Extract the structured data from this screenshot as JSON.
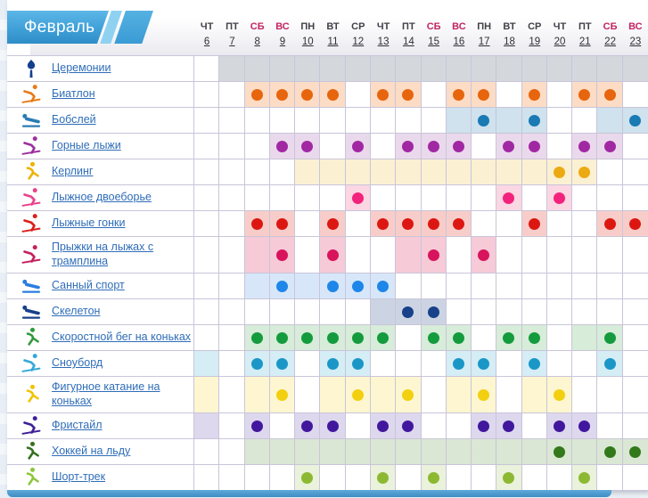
{
  "header": {
    "month_label": "Февраль",
    "days": [
      {
        "name": "ЧТ",
        "num": "6",
        "weekend": false
      },
      {
        "name": "ПТ",
        "num": "7",
        "weekend": false
      },
      {
        "name": "СБ",
        "num": "8",
        "weekend": true
      },
      {
        "name": "ВС",
        "num": "9",
        "weekend": true
      },
      {
        "name": "ПН",
        "num": "10",
        "weekend": false
      },
      {
        "name": "ВТ",
        "num": "11",
        "weekend": false
      },
      {
        "name": "СР",
        "num": "12",
        "weekend": false
      },
      {
        "name": "ЧТ",
        "num": "13",
        "weekend": false
      },
      {
        "name": "ПТ",
        "num": "14",
        "weekend": false
      },
      {
        "name": "СБ",
        "num": "15",
        "weekend": true
      },
      {
        "name": "ВС",
        "num": "16",
        "weekend": true
      },
      {
        "name": "ПН",
        "num": "17",
        "weekend": false
      },
      {
        "name": "ВТ",
        "num": "18",
        "weekend": false
      },
      {
        "name": "СР",
        "num": "19",
        "weekend": false
      },
      {
        "name": "ЧТ",
        "num": "20",
        "weekend": false
      },
      {
        "name": "ПТ",
        "num": "21",
        "weekend": false
      },
      {
        "name": "СБ",
        "num": "22",
        "weekend": true
      },
      {
        "name": "ВС",
        "num": "23",
        "weekend": true
      }
    ]
  },
  "colors": {
    "ribbon_blue": "#3fa0d8",
    "weekday_text": "#41414b",
    "weekend_text": "#c22563",
    "day_number_text": "#2e2e36",
    "sport_link": "#2f6db8",
    "grid_line": "#c9c5d9",
    "bottom_bar": "#4f9cd0"
  },
  "rows": [
    {
      "label": "Церемонии",
      "icon": "torch",
      "icon_color": "#143f8e",
      "shade_color": "#d4d8dd",
      "dot_color": null,
      "tall": false,
      "shaded": [
        7,
        8,
        9,
        10,
        11,
        12,
        13,
        14,
        15,
        16,
        17,
        18,
        19,
        20,
        21,
        22,
        23
      ],
      "dots": []
    },
    {
      "label": "Биатлон",
      "icon": "skier",
      "icon_color": "#e87a16",
      "shade_color": "#fcdcc5",
      "dot_color": "#e7650d",
      "tall": false,
      "shaded": [
        8,
        9,
        10,
        11,
        13,
        14,
        16,
        17,
        19,
        21,
        22
      ],
      "dots": [
        8,
        9,
        10,
        11,
        13,
        14,
        16,
        17,
        19,
        21,
        22
      ]
    },
    {
      "label": "Бобслей",
      "icon": "sled",
      "icon_color": "#2a7cb4",
      "shade_color": "#cfe2ee",
      "dot_color": "#1a7ab3",
      "tall": false,
      "shaded": [
        16,
        17,
        18,
        19,
        22,
        23
      ],
      "dots": [
        17,
        19,
        23
      ]
    },
    {
      "label": "Горные лыжи",
      "icon": "skier",
      "icon_color": "#9c2f9e",
      "shade_color": "#ead9ec",
      "dot_color": "#a128a3",
      "tall": false,
      "shaded": [
        9,
        10,
        12,
        14,
        15,
        16,
        18,
        19,
        21,
        22
      ],
      "dots": [
        9,
        10,
        12,
        14,
        15,
        16,
        18,
        19,
        21,
        22
      ]
    },
    {
      "label": "Керлинг",
      "icon": "skater",
      "icon_color": "#ecb200",
      "shade_color": "#fbf0d2",
      "dot_color": "#ecaa12",
      "tall": false,
      "shaded": [
        10,
        11,
        12,
        13,
        14,
        15,
        16,
        17,
        18,
        19,
        20,
        21
      ],
      "dots": [
        20,
        21
      ]
    },
    {
      "label": "Лыжное двоеборье",
      "icon": "skier",
      "icon_color": "#e8418c",
      "shade_color": "#fbd6e3",
      "dot_color": "#f2237d",
      "tall": false,
      "shaded": [
        12,
        18,
        20
      ],
      "dots": [
        12,
        18,
        20
      ]
    },
    {
      "label": "Лыжные гонки",
      "icon": "skier",
      "icon_color": "#d8201c",
      "shade_color": "#f8cdc9",
      "dot_color": "#dc1712",
      "tall": false,
      "shaded": [
        8,
        9,
        11,
        13,
        14,
        15,
        16,
        19,
        22,
        23
      ],
      "dots": [
        8,
        9,
        11,
        13,
        14,
        15,
        16,
        19,
        22,
        23
      ]
    },
    {
      "label": "Прыжки на лыжах с трамплина",
      "icon": "skier",
      "icon_color": "#c41f5e",
      "shade_color": "#f6cad7",
      "dot_color": "#d8145d",
      "tall": true,
      "shaded": [
        8,
        9,
        11,
        14,
        15,
        17
      ],
      "dots": [
        9,
        11,
        15,
        17
      ]
    },
    {
      "label": "Санный спорт",
      "icon": "sled",
      "icon_color": "#2b7de0",
      "shade_color": "#d7e7f9",
      "dot_color": "#1f86e9",
      "tall": false,
      "shaded": [
        8,
        9,
        10,
        11,
        12,
        13
      ],
      "dots": [
        9,
        11,
        12,
        13
      ]
    },
    {
      "label": "Скелетон",
      "icon": "sled",
      "icon_color": "#17418a",
      "shade_color": "#ccd4e3",
      "dot_color": "#18418a",
      "tall": false,
      "shaded": [
        13,
        14,
        15
      ],
      "dots": [
        14,
        15
      ]
    },
    {
      "label": "Скоростной бег на коньках",
      "icon": "skater",
      "icon_color": "#2f9a3a",
      "shade_color": "#d7ecd9",
      "dot_color": "#149b3e",
      "tall": false,
      "shaded": [
        8,
        9,
        10,
        11,
        12,
        13,
        15,
        16,
        18,
        19,
        21,
        22
      ],
      "dots": [
        8,
        9,
        10,
        11,
        12,
        13,
        15,
        16,
        18,
        19,
        22
      ]
    },
    {
      "label": "Сноуборд",
      "icon": "skier",
      "icon_color": "#35a8d8",
      "shade_color": "#d5edf5",
      "dot_color": "#1a97c7",
      "tall": false,
      "shaded": [
        6,
        8,
        9,
        11,
        12,
        16,
        17,
        19,
        22
      ],
      "dots": [
        8,
        9,
        11,
        12,
        16,
        17,
        19,
        22
      ]
    },
    {
      "label": "Фигурное катание на коньках",
      "icon": "skater",
      "icon_color": "#efc400",
      "shade_color": "#fdf6d1",
      "dot_color": "#f2d00f",
      "tall": true,
      "shaded": [
        6,
        8,
        9,
        11,
        12,
        13,
        14,
        16,
        17,
        19,
        20
      ],
      "dots": [
        9,
        12,
        14,
        17,
        20
      ]
    },
    {
      "label": "Фристайл",
      "icon": "skier",
      "icon_color": "#3e2097",
      "shade_color": "#ded8ee",
      "dot_color": "#41189d",
      "tall": false,
      "shaded": [
        6,
        8,
        10,
        11,
        13,
        14,
        17,
        18,
        20,
        21
      ],
      "dots": [
        8,
        10,
        11,
        13,
        14,
        17,
        18,
        20,
        21
      ]
    },
    {
      "label": "Хоккей на льду",
      "icon": "skater",
      "icon_color": "#336f1e",
      "shade_color": "#dae7d4",
      "dot_color": "#31791b",
      "tall": false,
      "shaded": [
        8,
        9,
        10,
        11,
        12,
        13,
        14,
        15,
        16,
        17,
        18,
        19,
        20,
        21,
        22,
        23
      ],
      "dots": [
        20,
        22,
        23
      ]
    },
    {
      "label": "Шорт-трек",
      "icon": "skater",
      "icon_color": "#8cc63c",
      "shade_color": "#eaf2dc",
      "dot_color": "#8db932",
      "tall": false,
      "shaded": [
        10,
        13,
        15,
        18,
        21
      ],
      "dots": [
        10,
        13,
        15,
        18,
        21
      ]
    }
  ]
}
